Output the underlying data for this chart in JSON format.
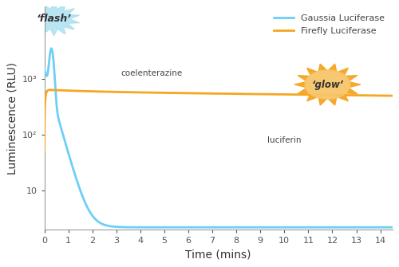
{
  "xlabel": "Time (mins)",
  "ylabel": "Luminescence (RLU)",
  "gaussia_color": "#6DCFF6",
  "firefly_color": "#F5A623",
  "background_color": "#FFFFFF",
  "xlim": [
    0,
    14.5
  ],
  "xticks": [
    0,
    1,
    2,
    3,
    4,
    5,
    6,
    7,
    8,
    9,
    10,
    11,
    12,
    13,
    14
  ],
  "yticks": [
    10,
    100,
    1000
  ],
  "ytick_labels": [
    "10",
    "10²",
    "10³"
  ],
  "legend_gaussia": "Gaussia Luciferase",
  "legend_firefly": "Firefly Luciferase",
  "flash_label": "‘flash’",
  "glow_label": "‘glow’",
  "coelenterazine_label": "coelenterazine",
  "luciferin_label": "luciferin",
  "gaussia_peak": 2500,
  "gaussia_plateau": 2.2,
  "firefly_plateau": 600,
  "flash_starburst_color": "#A8DFF0",
  "glow_sun_color": "#F5A623",
  "glow_sun_inner": "#F7C46A",
  "axis_color": "#999999",
  "text_color": "#555555"
}
